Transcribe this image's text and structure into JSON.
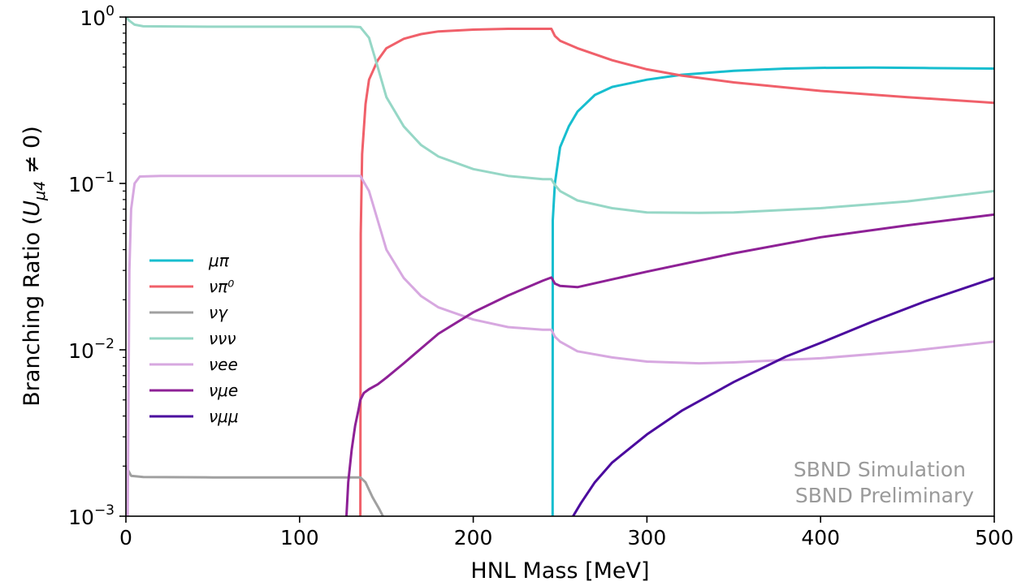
{
  "chart_data": {
    "type": "line",
    "title": "",
    "xlabel": "HNL Mass [MeV]",
    "ylabel": "Branching Ratio (U_{μ4} ≠ 0)",
    "ylabel_text": "Branching Ratio (",
    "ylabel_u": "U",
    "ylabel_sub": "μ4",
    "ylabel_tail": " ≠ 0)",
    "xlim": [
      0,
      500
    ],
    "ylim": [
      0.001,
      1
    ],
    "yscale": "log",
    "grid": false,
    "legend_position": "center-left",
    "x_ticks": [
      "0",
      "100",
      "200",
      "300",
      "400",
      "500"
    ],
    "y_ticks": [
      {
        "base": "10",
        "exp": "0"
      },
      {
        "base": "10",
        "exp": "−1"
      },
      {
        "base": "10",
        "exp": "−2"
      },
      {
        "base": "10",
        "exp": "−3"
      }
    ],
    "annotations": [
      "SBND Simulation",
      "SBND Preliminary"
    ],
    "series": [
      {
        "name": "μπ",
        "color": "#17becf",
        "points": [
          [
            245.7,
            0.001
          ],
          [
            245.8,
            0.06
          ],
          [
            247,
            0.1
          ],
          [
            250,
            0.165
          ],
          [
            255,
            0.22
          ],
          [
            260,
            0.27
          ],
          [
            270,
            0.34
          ],
          [
            280,
            0.38
          ],
          [
            300,
            0.42
          ],
          [
            320,
            0.45
          ],
          [
            350,
            0.475
          ],
          [
            380,
            0.49
          ],
          [
            400,
            0.495
          ],
          [
            430,
            0.497
          ],
          [
            460,
            0.494
          ],
          [
            500,
            0.49
          ]
        ]
      },
      {
        "name": "νπ⁰",
        "color": "#f0606a",
        "points": [
          [
            134.98,
            0.001
          ],
          [
            135.2,
            0.05
          ],
          [
            136,
            0.15
          ],
          [
            138,
            0.3
          ],
          [
            140,
            0.42
          ],
          [
            145,
            0.55
          ],
          [
            150,
            0.65
          ],
          [
            160,
            0.74
          ],
          [
            170,
            0.79
          ],
          [
            180,
            0.82
          ],
          [
            200,
            0.84
          ],
          [
            220,
            0.85
          ],
          [
            240,
            0.85
          ],
          [
            245,
            0.85
          ],
          [
            247,
            0.77
          ],
          [
            250,
            0.72
          ],
          [
            260,
            0.65
          ],
          [
            280,
            0.55
          ],
          [
            300,
            0.485
          ],
          [
            320,
            0.445
          ],
          [
            350,
            0.405
          ],
          [
            400,
            0.36
          ],
          [
            450,
            0.33
          ],
          [
            500,
            0.305
          ]
        ]
      },
      {
        "name": "νγ",
        "color": "#a0a0a0",
        "points": [
          [
            0,
            0.002
          ],
          [
            3,
            0.00175
          ],
          [
            10,
            0.00172
          ],
          [
            50,
            0.00171
          ],
          [
            100,
            0.00171
          ],
          [
            130,
            0.00171
          ],
          [
            135,
            0.00171
          ],
          [
            138,
            0.0016
          ],
          [
            142,
            0.0013
          ],
          [
            146,
            0.0011
          ],
          [
            148,
            0.001
          ]
        ]
      },
      {
        "name": "ννν",
        "color": "#96d7c6",
        "points": [
          [
            0,
            1.0
          ],
          [
            2,
            0.95
          ],
          [
            5,
            0.9
          ],
          [
            10,
            0.88
          ],
          [
            50,
            0.875
          ],
          [
            100,
            0.875
          ],
          [
            130,
            0.875
          ],
          [
            135,
            0.87
          ],
          [
            140,
            0.75
          ],
          [
            145,
            0.5
          ],
          [
            150,
            0.33
          ],
          [
            160,
            0.22
          ],
          [
            170,
            0.17
          ],
          [
            180,
            0.145
          ],
          [
            200,
            0.122
          ],
          [
            220,
            0.111
          ],
          [
            240,
            0.106
          ],
          [
            245,
            0.106
          ],
          [
            247,
            0.098
          ],
          [
            250,
            0.09
          ],
          [
            260,
            0.079
          ],
          [
            280,
            0.071
          ],
          [
            300,
            0.067
          ],
          [
            330,
            0.0665
          ],
          [
            350,
            0.067
          ],
          [
            400,
            0.071
          ],
          [
            450,
            0.078
          ],
          [
            500,
            0.09
          ]
        ]
      },
      {
        "name": "νee",
        "color": "#d7a8e0",
        "points": [
          [
            1.03,
            0.001
          ],
          [
            2,
            0.03
          ],
          [
            3,
            0.07
          ],
          [
            5,
            0.1
          ],
          [
            8,
            0.11
          ],
          [
            20,
            0.111
          ],
          [
            50,
            0.111
          ],
          [
            100,
            0.111
          ],
          [
            135,
            0.111
          ],
          [
            140,
            0.09
          ],
          [
            145,
            0.06
          ],
          [
            150,
            0.04
          ],
          [
            160,
            0.027
          ],
          [
            170,
            0.021
          ],
          [
            180,
            0.018
          ],
          [
            200,
            0.0152
          ],
          [
            220,
            0.0137
          ],
          [
            240,
            0.0132
          ],
          [
            245,
            0.0132
          ],
          [
            247,
            0.012
          ],
          [
            250,
            0.0112
          ],
          [
            260,
            0.0098
          ],
          [
            280,
            0.009
          ],
          [
            300,
            0.0085
          ],
          [
            330,
            0.0083
          ],
          [
            350,
            0.0084
          ],
          [
            400,
            0.0089
          ],
          [
            450,
            0.0098
          ],
          [
            500,
            0.0112
          ]
        ]
      },
      {
        "name": "νμe",
        "color": "#8e2196",
        "points": [
          [
            127,
            0.001
          ],
          [
            128,
            0.0016
          ],
          [
            130,
            0.0025
          ],
          [
            132,
            0.0035
          ],
          [
            134,
            0.0044
          ],
          [
            135,
            0.005
          ],
          [
            137,
            0.0055
          ],
          [
            140,
            0.0058
          ],
          [
            145,
            0.0062
          ],
          [
            150,
            0.0068
          ],
          [
            160,
            0.0083
          ],
          [
            170,
            0.0102
          ],
          [
            180,
            0.0125
          ],
          [
            200,
            0.0168
          ],
          [
            220,
            0.0212
          ],
          [
            240,
            0.026
          ],
          [
            245,
            0.0272
          ],
          [
            247,
            0.025
          ],
          [
            250,
            0.0242
          ],
          [
            260,
            0.0238
          ],
          [
            280,
            0.0265
          ],
          [
            300,
            0.0295
          ],
          [
            350,
            0.038
          ],
          [
            400,
            0.0475
          ],
          [
            450,
            0.056
          ],
          [
            500,
            0.065
          ]
        ]
      },
      {
        "name": "νμμ",
        "color": "#4b0a9e",
        "points": [
          [
            257.5,
            0.001
          ],
          [
            262,
            0.0012
          ],
          [
            270,
            0.0016
          ],
          [
            280,
            0.0021
          ],
          [
            300,
            0.0031
          ],
          [
            320,
            0.0043
          ],
          [
            350,
            0.0064
          ],
          [
            380,
            0.0091
          ],
          [
            400,
            0.011
          ],
          [
            430,
            0.0148
          ],
          [
            460,
            0.0195
          ],
          [
            500,
            0.027
          ]
        ]
      }
    ]
  }
}
